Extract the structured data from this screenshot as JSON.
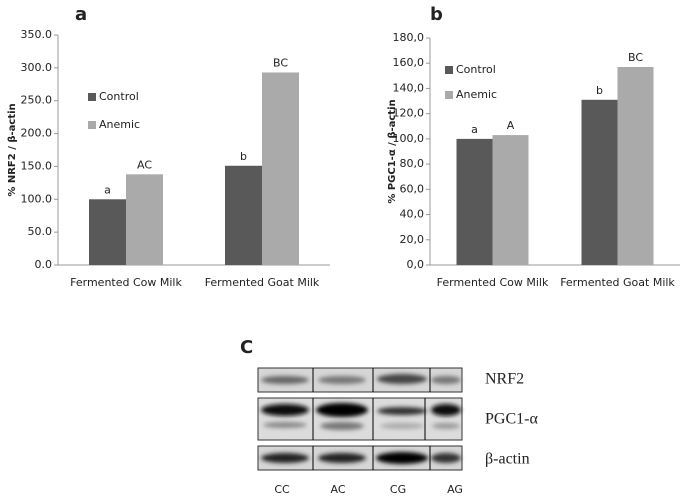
{
  "chart_data": [
    {
      "type": "bar",
      "panel": "a",
      "ylabel": "% NRF2 / β-actin",
      "categories": [
        "Fermented Cow Milk",
        "Fermented Goat Milk"
      ],
      "series": [
        {
          "name": "Control",
          "color": "#595959",
          "values": [
            100,
            151
          ],
          "letters": [
            "a",
            "b"
          ]
        },
        {
          "name": "Anemic",
          "color": "#aaaaaa",
          "values": [
            138,
            293
          ],
          "letters": [
            "AC",
            "BC"
          ]
        }
      ],
      "ylim": [
        0,
        350
      ],
      "yticks": [
        {
          "value": 0,
          "label": "0.0"
        },
        {
          "value": 50,
          "label": "50.0"
        },
        {
          "value": 100,
          "label": "100.0"
        },
        {
          "value": 150,
          "label": "150.0"
        },
        {
          "value": 200,
          "label": "200.0"
        },
        {
          "value": 250,
          "label": "250.0"
        },
        {
          "value": 300,
          "label": "300.0"
        },
        {
          "value": 350,
          "label": "350.0"
        }
      ],
      "legend": "upper left",
      "grid": false
    },
    {
      "type": "bar",
      "panel": "b",
      "ylabel": "% PGC1-α / β-actin",
      "categories": [
        "Fermented Cow Milk",
        "Fermented Goat Milk"
      ],
      "series": [
        {
          "name": "Control",
          "color": "#595959",
          "values": [
            100,
            131
          ],
          "letters": [
            "a",
            "b"
          ]
        },
        {
          "name": "Anemic",
          "color": "#aaaaaa",
          "values": [
            103,
            157
          ],
          "letters": [
            "A",
            "BC"
          ]
        }
      ],
      "ylim": [
        0,
        180
      ],
      "yticks": [
        {
          "value": 0,
          "label": "0,0"
        },
        {
          "value": 20,
          "label": "20,0"
        },
        {
          "value": 40,
          "label": "40,0"
        },
        {
          "value": 60,
          "label": "60,0"
        },
        {
          "value": 80,
          "label": "80,0"
        },
        {
          "value": 100,
          "label": "100,0"
        },
        {
          "value": 120,
          "label": "120,0"
        },
        {
          "value": 140,
          "label": "140,0"
        },
        {
          "value": 160,
          "label": "160,0"
        },
        {
          "value": 180,
          "label": "180,0"
        }
      ],
      "legend": "upper left",
      "grid": false
    }
  ],
  "blot": {
    "panel": "C",
    "rows": [
      "NRF2",
      "PGC1-α",
      "β-actin"
    ],
    "lanes": [
      "CC",
      "AC",
      "CG",
      "AG"
    ]
  }
}
